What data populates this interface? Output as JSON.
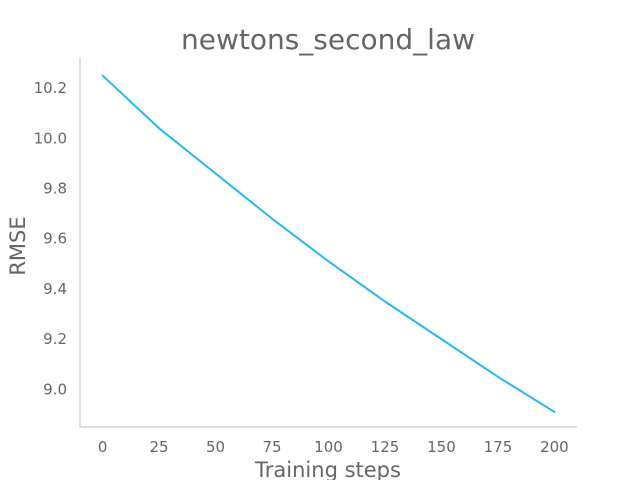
{
  "chart_data": {
    "type": "line",
    "title": "newtons_second_law",
    "xlabel": "Training steps",
    "ylabel": "RMSE",
    "xlim": [
      -10,
      210
    ],
    "ylim": [
      8.85,
      10.32
    ],
    "xticks": [
      0,
      25,
      50,
      75,
      100,
      125,
      150,
      175,
      200
    ],
    "yticks": [
      9.0,
      9.2,
      9.4,
      9.6,
      9.8,
      10.0,
      10.2
    ],
    "grid": false,
    "series": [
      {
        "color": "#29b6f6",
        "x": [
          0,
          25,
          50,
          75,
          100,
          125,
          150,
          175,
          200
        ],
        "y": [
          10.25,
          10.04,
          9.86,
          9.68,
          9.51,
          9.35,
          9.2,
          9.05,
          8.91
        ]
      }
    ]
  }
}
